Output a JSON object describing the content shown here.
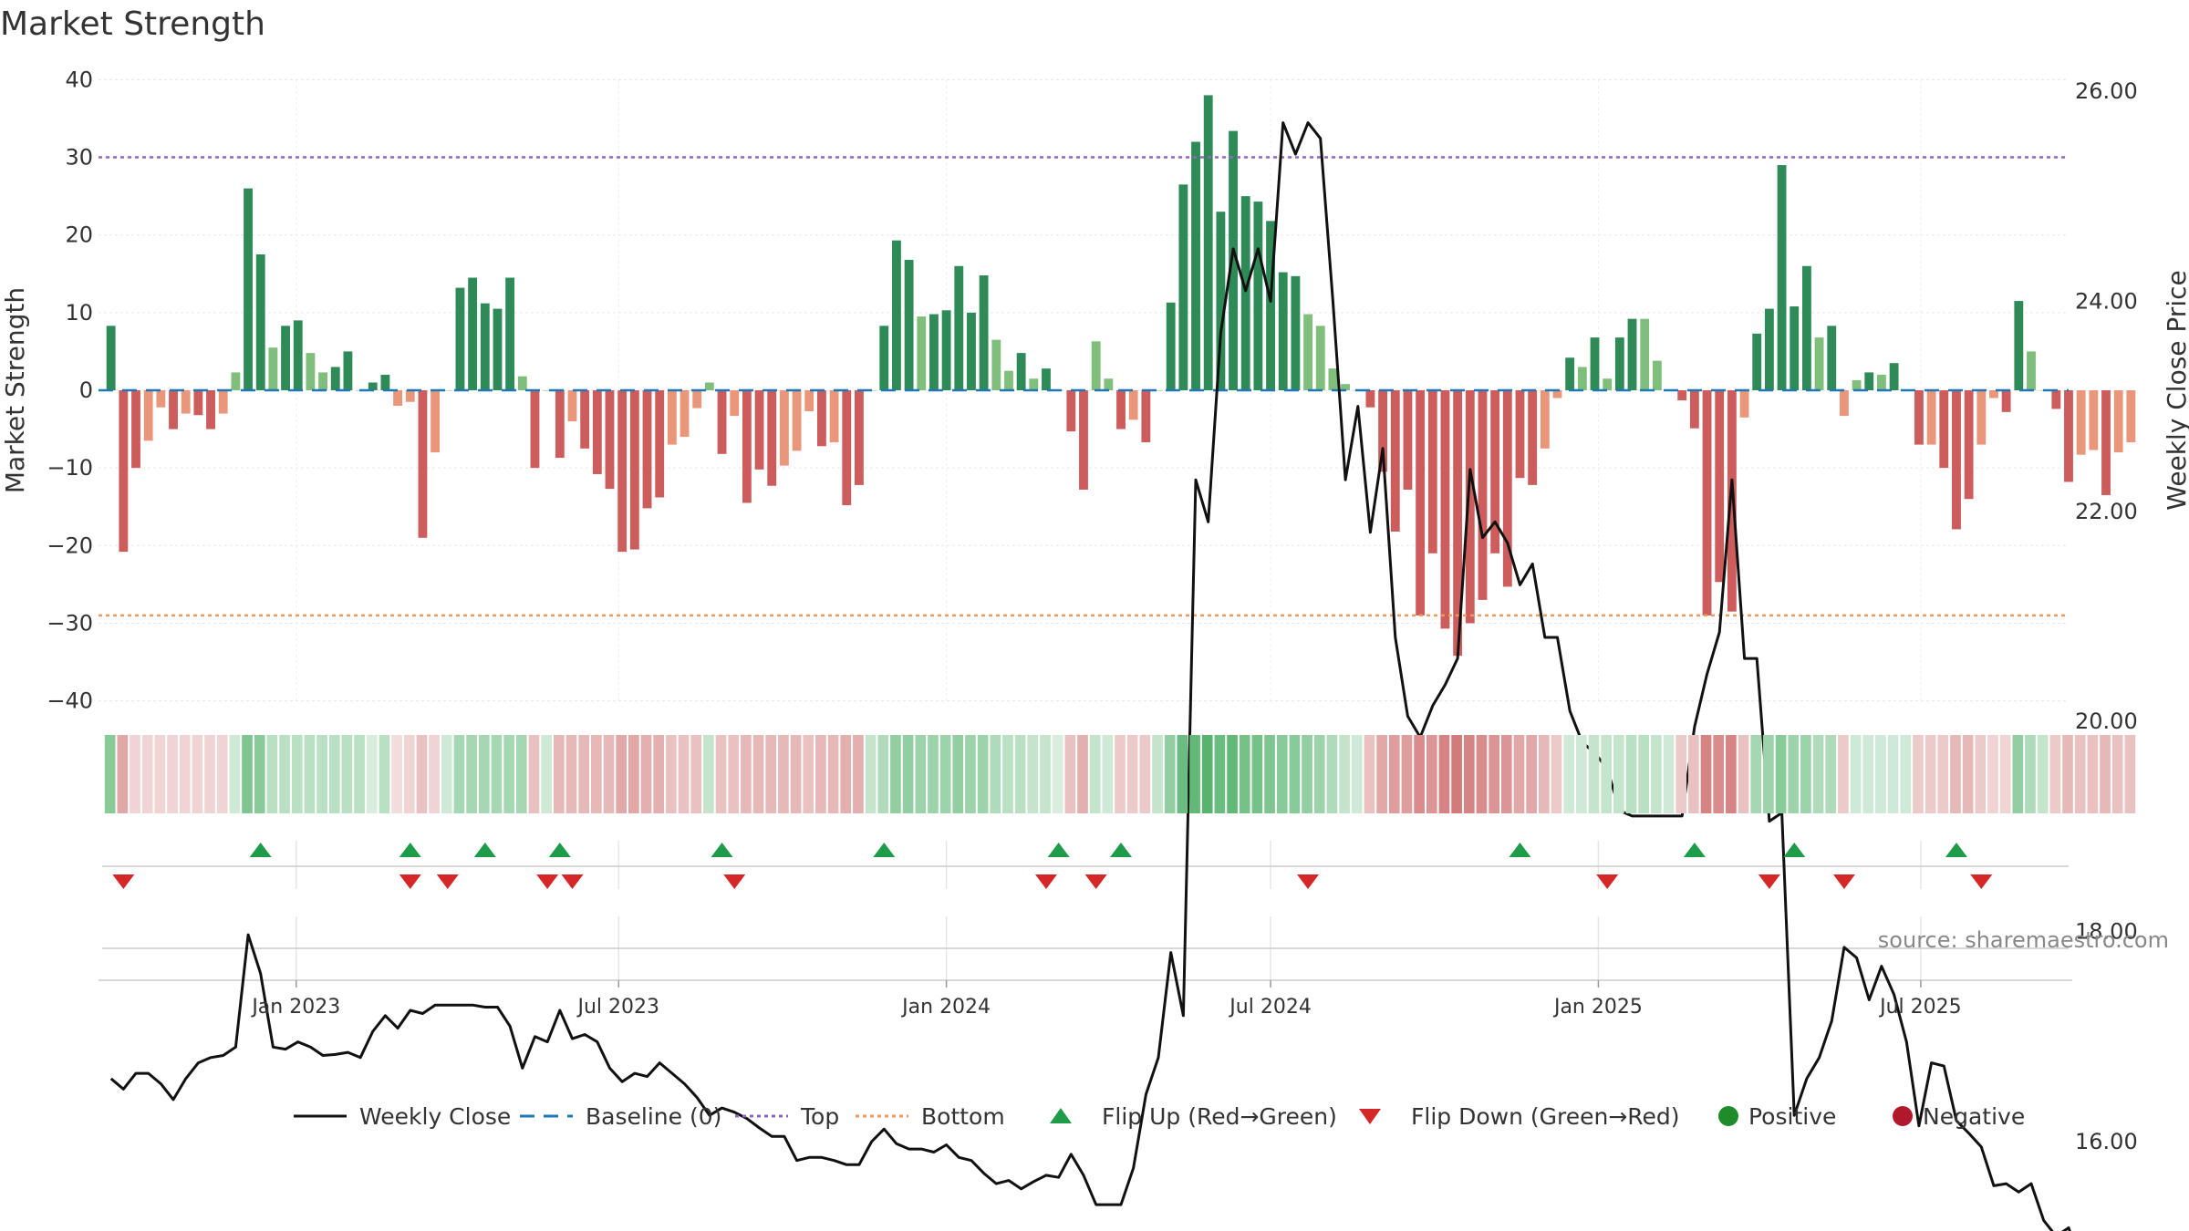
{
  "chart_data": {
    "type": "bar",
    "title": "Market Strength",
    "ylabel": "Market Strength",
    "y2label": "Weekly Close Price",
    "ylim": [
      -42,
      42
    ],
    "y2lim": [
      14.5,
      26.5
    ],
    "yticks": [
      40,
      30,
      20,
      10,
      0,
      -10,
      -20,
      -30,
      -40
    ],
    "ytick_labels": [
      "40",
      "30",
      "20",
      "10",
      "0",
      "−10",
      "−20",
      "−30",
      "−40"
    ],
    "y2ticks": [
      26,
      24,
      22,
      20,
      18,
      16
    ],
    "y2tick_labels": [
      "26.00",
      "24.00",
      "22.00",
      "20.00",
      "18.00",
      "16.00"
    ],
    "top_line": 30,
    "bottom_line": -29,
    "xlim": [
      "2022-09-12",
      "2025-09-22"
    ],
    "xticks": [
      {
        "date": "2023-01-01",
        "label": "Jan 2023"
      },
      {
        "date": "2023-07-01",
        "label": "Jul 2023"
      },
      {
        "date": "2024-01-01",
        "label": "Jan 2024"
      },
      {
        "date": "2024-07-01",
        "label": "Jul 2024"
      },
      {
        "date": "2025-01-01",
        "label": "Jan 2025"
      },
      {
        "date": "2025-07-01",
        "label": "Jul 2025"
      }
    ],
    "start_week": "2022-09-19",
    "strength": [
      8.3,
      -20.8,
      -10,
      -6.5,
      -2.2,
      -5,
      -3,
      -3.2,
      -5,
      -3,
      2.3,
      26,
      17.5,
      5.5,
      8.3,
      9,
      4.8,
      2.3,
      3,
      5,
      0,
      1,
      2,
      -2,
      -1.5,
      -19,
      -8,
      0,
      13.2,
      14.5,
      11.2,
      10.5,
      14.5,
      1.8,
      -10,
      0,
      -8.7,
      -4,
      -7.5,
      -10.8,
      -12.7,
      -20.8,
      -20.5,
      -15.2,
      -13.8,
      -7,
      -6,
      -2.3,
      1,
      -8.2,
      -3.3,
      -14.5,
      -10.2,
      -12.3,
      -9.7,
      -7.8,
      -2.7,
      -7.2,
      -6.7,
      -14.8,
      -12.2,
      0,
      8.3,
      19.3,
      16.8,
      9.5,
      9.8,
      10.3,
      16,
      10,
      14.8,
      6.5,
      2.5,
      4.8,
      1.5,
      2.8,
      0,
      -5.3,
      -12.8,
      6.3,
      1.5,
      -5,
      -3.8,
      -6.7,
      0,
      11.3,
      26.5,
      32,
      38,
      23,
      33.4,
      25,
      24.3,
      21.8,
      15.2,
      14.7,
      9.8,
      8.3,
      2.8,
      0.8,
      0,
      -2.2,
      -10.5,
      -18.2,
      -12.8,
      -29,
      -21,
      -30.7,
      -34.2,
      -30,
      -27,
      -21,
      -25.3,
      -11.3,
      -12.2,
      -7.5,
      -1,
      4.2,
      3,
      6.8,
      1.5,
      6.8,
      9.2,
      9.2,
      3.8,
      0,
      -1.3,
      -4.9,
      -29,
      -24.7,
      -28.5,
      -3.5,
      7.3,
      10.5,
      29,
      10.8,
      16,
      6.8,
      8.3,
      -3.3,
      1.3,
      2.3,
      2,
      3.5,
      0,
      -7,
      -7,
      -10,
      -17.9,
      -14,
      -7,
      -1,
      -2.8,
      11.5,
      5,
      0,
      -2.4,
      -11.8,
      -8.3,
      -7.7,
      -13.5,
      -8,
      -6.7
    ],
    "weekly_close": [
      16.6,
      16.5,
      16.65,
      16.65,
      16.55,
      16.4,
      16.6,
      16.75,
      16.8,
      16.82,
      16.9,
      17.97,
      17.6,
      16.9,
      16.88,
      16.95,
      16.9,
      16.82,
      16.83,
      16.85,
      16.8,
      17.05,
      17.2,
      17.08,
      17.25,
      17.22,
      17.3,
      17.3,
      17.3,
      17.3,
      17.28,
      17.28,
      17.1,
      16.7,
      17.0,
      16.95,
      17.25,
      16.98,
      17.02,
      16.95,
      16.7,
      16.57,
      16.65,
      16.62,
      16.75,
      16.65,
      16.55,
      16.42,
      16.25,
      16.32,
      16.28,
      16.22,
      16.13,
      16.05,
      16.05,
      15.82,
      15.85,
      15.85,
      15.82,
      15.78,
      15.78,
      16.0,
      16.12,
      15.98,
      15.93,
      15.93,
      15.9,
      15.97,
      15.85,
      15.82,
      15.7,
      15.6,
      15.63,
      15.55,
      15.62,
      15.68,
      15.66,
      15.88,
      15.68,
      15.4,
      15.4,
      15.4,
      15.75,
      16.45,
      16.8,
      17.8,
      17.2,
      22.3,
      21.9,
      23.7,
      24.5,
      24.1,
      24.5,
      24.0,
      25.7,
      25.4,
      25.7,
      25.55,
      24.0,
      22.3,
      23.0,
      21.8,
      22.6,
      20.8,
      20.05,
      19.85,
      20.15,
      20.35,
      20.6,
      22.4,
      21.75,
      21.9,
      21.7,
      21.3,
      21.5,
      20.8,
      20.8,
      20.1,
      19.8,
      19.7,
      19.55,
      19.15,
      19.1,
      19.1,
      19.1,
      19.1,
      19.1,
      19.95,
      20.45,
      20.85,
      22.3,
      20.6,
      20.6,
      19.05,
      19.13,
      16.25,
      16.6,
      16.8,
      17.15,
      17.85,
      17.75,
      17.35,
      17.67,
      17.4,
      16.95,
      16.15,
      16.75,
      16.72,
      16.2,
      16.08,
      15.95,
      15.58,
      15.6,
      15.52,
      15.6,
      15.25,
      15.1,
      15.18,
      14.85
    ],
    "cells": [
      0.6,
      0.5,
      0.25,
      0.25,
      0.25,
      0.25,
      0.25,
      0.25,
      0.25,
      0.25,
      0.25,
      0.65,
      0.6,
      0.35,
      0.35,
      0.35,
      0.35,
      0.35,
      0.35,
      0.35,
      0.35,
      0.2,
      0.35,
      0.2,
      0.25,
      0.35,
      0.25,
      0.25,
      0.45,
      0.45,
      0.45,
      0.45,
      0.45,
      0.45,
      0.35,
      0.25,
      0.4,
      0.4,
      0.4,
      0.4,
      0.4,
      0.5,
      0.5,
      0.45,
      0.45,
      0.35,
      0.35,
      0.35,
      0.3,
      0.35,
      0.35,
      0.4,
      0.4,
      0.4,
      0.4,
      0.4,
      0.35,
      0.4,
      0.4,
      0.45,
      0.45,
      0.3,
      0.4,
      0.55,
      0.55,
      0.5,
      0.5,
      0.5,
      0.55,
      0.5,
      0.5,
      0.4,
      0.35,
      0.35,
      0.3,
      0.3,
      0.2,
      0.35,
      0.45,
      0.3,
      0.25,
      0.3,
      0.3,
      0.3,
      0.3,
      0.55,
      0.75,
      0.8,
      0.85,
      0.75,
      0.8,
      0.7,
      0.7,
      0.65,
      0.6,
      0.6,
      0.55,
      0.5,
      0.4,
      0.3,
      0.25,
      0.35,
      0.5,
      0.55,
      0.55,
      0.65,
      0.6,
      0.7,
      0.75,
      0.7,
      0.65,
      0.6,
      0.6,
      0.5,
      0.5,
      0.4,
      0.3,
      0.25,
      0.25,
      0.3,
      0.3,
      0.3,
      0.35,
      0.35,
      0.3,
      0.25,
      0.3,
      0.35,
      0.7,
      0.65,
      0.7,
      0.35,
      0.45,
      0.5,
      0.6,
      0.5,
      0.5,
      0.4,
      0.4,
      0.3,
      0.25,
      0.25,
      0.25,
      0.25,
      0.25,
      0.3,
      0.3,
      0.3,
      0.4,
      0.4,
      0.3,
      0.25,
      0.25,
      0.55,
      0.4,
      0.3,
      0.3,
      0.4,
      0.35,
      0.35,
      0.4,
      0.35,
      0.35
    ],
    "flip_up": [
      "2022-12-12",
      "2023-03-06",
      "2023-04-17",
      "2023-05-29",
      "2023-08-28",
      "2023-11-27",
      "2024-03-04",
      "2024-04-08",
      "2024-11-18",
      "2025-02-24",
      "2025-04-21",
      "2025-07-21"
    ],
    "flip_down": [
      "2022-09-26",
      "2023-03-06",
      "2023-03-27",
      "2023-05-22",
      "2023-06-05",
      "2023-09-04",
      "2024-02-26",
      "2024-03-25",
      "2024-07-22",
      "2025-01-06",
      "2025-04-07",
      "2025-05-19",
      "2025-08-04"
    ],
    "legend": [
      {
        "label": "Weekly Close",
        "marker": "line",
        "color": "#111111"
      },
      {
        "label": "Baseline (0)",
        "marker": "dash",
        "color": "#1f77b4"
      },
      {
        "label": "Top",
        "marker": "dot-line",
        "color": "#9467bd"
      },
      {
        "label": "Bottom",
        "marker": "dot-line",
        "color": "#ee9b5f"
      },
      {
        "label": "Flip Up (Red→Green)",
        "marker": "tri-up",
        "color": "#1e9c4a"
      },
      {
        "label": "Flip Down (Green→Red)",
        "marker": "tri-down",
        "color": "#d62728"
      },
      {
        "label": "Positive",
        "marker": "circle",
        "color": "#1f8c2b"
      },
      {
        "label": "Negative",
        "marker": "circle",
        "color": "#b2182b"
      }
    ],
    "legend_position": "bottom",
    "grid": true,
    "colors": {
      "strong_positive": "#2e8b57",
      "weak_positive": "#7fbf7b",
      "strong_negative": "#cd5c5c",
      "weak_negative": "#e9967a",
      "baseline": "#1f77b4",
      "top_line": "#9467bd",
      "bottom_line": "#ee9b5f",
      "close_line": "#111111",
      "cell_positive": "#3aa655",
      "cell_negative": "#c44e4e"
    }
  },
  "source_text": "source: sharemaestro.com"
}
